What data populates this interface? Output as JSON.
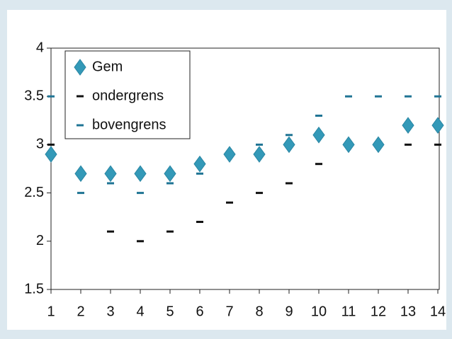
{
  "chart_data": {
    "type": "scatter",
    "x": [
      1,
      2,
      3,
      4,
      5,
      6,
      7,
      8,
      9,
      10,
      11,
      12,
      13,
      14
    ],
    "series": [
      {
        "name": "Gem",
        "color": "#3399b8",
        "marker": "diamond",
        "values": [
          2.9,
          2.7,
          2.7,
          2.7,
          2.7,
          2.8,
          2.9,
          2.9,
          3.0,
          3.1,
          3.0,
          3.0,
          3.2,
          3.2
        ]
      },
      {
        "name": "ondergrens",
        "color": "#111111",
        "marker": "dash",
        "values": [
          3.0,
          null,
          2.1,
          2.0,
          2.1,
          2.2,
          2.4,
          2.5,
          2.6,
          2.8,
          3.0,
          3.0,
          3.0,
          3.0
        ]
      },
      {
        "name": "bovengrens",
        "color": "#1f7494",
        "marker": "dash",
        "values": [
          3.5,
          2.5,
          2.6,
          2.5,
          2.6,
          2.7,
          null,
          3.0,
          3.1,
          3.3,
          3.5,
          3.5,
          3.5,
          3.5
        ]
      }
    ],
    "xlim": [
      1,
      14
    ],
    "xticks": [
      1,
      2,
      3,
      4,
      5,
      6,
      7,
      8,
      9,
      10,
      11,
      12,
      13,
      14
    ],
    "ylim": [
      1.5,
      4
    ],
    "yticks": [
      1.5,
      2,
      2.5,
      3,
      3.5,
      4
    ],
    "legend": "top-left"
  }
}
